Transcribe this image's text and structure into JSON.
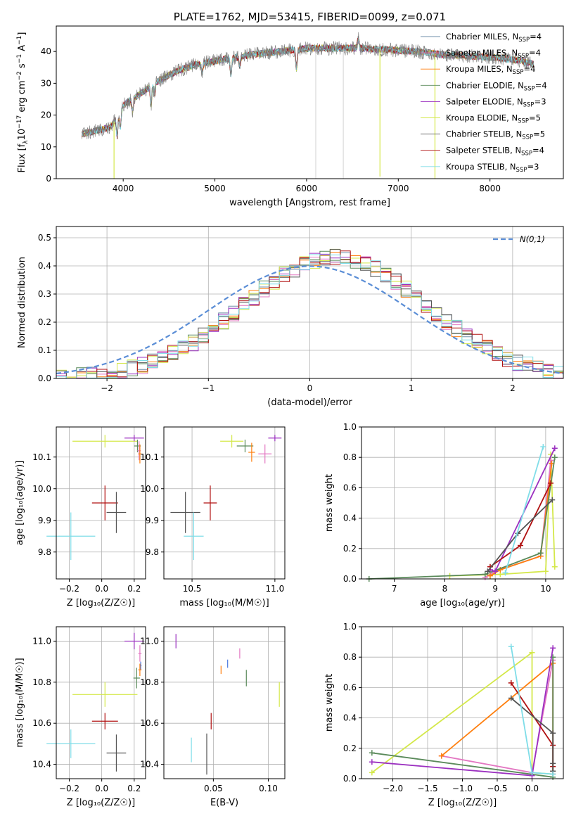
{
  "colors": {
    "chabrier_miles": "#6f8fa8",
    "salpeter_miles": "#e377c2",
    "kroupa_miles": "#ff7f0e",
    "chabrier_elodie": "#5a8a5a",
    "salpeter_elodie": "#9b30c0",
    "kroupa_elodie": "#d4e84a",
    "chabrier_stelib": "#555555",
    "salpeter_stelib": "#b01010",
    "kroupa_stelib": "#7fdde8",
    "normal_curve": "#5b8ed6",
    "grey_spectrum": "#7f7f7f",
    "blue_marker": "#4a78e0"
  },
  "chart_data": [
    {
      "id": "spectrum",
      "type": "line",
      "title": "PLATE=1762, MJD=53415, FIBERID=0099, z=0.071",
      "xlabel": "wavelength [Angstrom, rest frame]",
      "ylabel": "Flux [f$_\\lambda$10$^{-17}$ erg cm$^{-2}$ s$^{-1}$ A$^{-1}$]",
      "ylabel_parts": [
        "Flux [f",
        "λ",
        "10",
        "−17",
        " erg cm",
        "−2",
        " s",
        "−1",
        " A",
        "−1",
        "]"
      ],
      "xlim": [
        3270,
        8800
      ],
      "ylim": [
        0,
        48
      ],
      "xticks": [
        4000,
        5000,
        6000,
        7000,
        8000
      ],
      "yticks": [
        0,
        10,
        20,
        30,
        40
      ],
      "grid": false,
      "legend_position": "top-right",
      "legend": [
        {
          "key": "chabrier_miles",
          "name": "Chabrier MILES, N",
          "sub": "SSP",
          "suffix": "=4"
        },
        {
          "key": "salpeter_miles",
          "name": "Salpeter MILES, N",
          "sub": "SSP",
          "suffix": "=4"
        },
        {
          "key": "kroupa_miles",
          "name": "Kroupa MILES, N",
          "sub": "SSP",
          "suffix": "=4"
        },
        {
          "key": "chabrier_elodie",
          "name": "Chabrier ELODIE, N",
          "sub": "SSP",
          "suffix": "=4"
        },
        {
          "key": "salpeter_elodie",
          "name": "Salpeter ELODIE, N",
          "sub": "SSP",
          "suffix": "=3"
        },
        {
          "key": "kroupa_elodie",
          "name": "Kroupa ELODIE, N",
          "sub": "SSP",
          "suffix": "=5"
        },
        {
          "key": "chabrier_stelib",
          "name": "Chabrier STELIB, N",
          "sub": "SSP",
          "suffix": "=5"
        },
        {
          "key": "salpeter_stelib",
          "name": "Salpeter STELIB, N",
          "sub": "SSP",
          "suffix": "=4"
        },
        {
          "key": "kroupa_stelib",
          "name": "Kroupa STELIB, N",
          "sub": "SSP",
          "suffix": "=3"
        }
      ],
      "continuum": [
        [
          3550,
          14
        ],
        [
          3700,
          15
        ],
        [
          3850,
          16
        ],
        [
          3950,
          20
        ],
        [
          4000,
          23
        ],
        [
          4200,
          27
        ],
        [
          4400,
          31
        ],
        [
          4600,
          34
        ],
        [
          4800,
          36
        ],
        [
          5000,
          37
        ],
        [
          5200,
          38
        ],
        [
          5400,
          39
        ],
        [
          5700,
          40
        ],
        [
          6000,
          41
        ],
        [
          6300,
          41
        ],
        [
          6600,
          41
        ],
        [
          6900,
          40.5
        ],
        [
          7200,
          40
        ],
        [
          7500,
          39
        ],
        [
          7800,
          38.5
        ],
        [
          8100,
          38
        ],
        [
          8350,
          37
        ],
        [
          8480,
          36
        ]
      ],
      "absorption_lines": [
        [
          3934,
          -6
        ],
        [
          3969,
          -5
        ],
        [
          4102,
          -4
        ],
        [
          4304,
          -6
        ],
        [
          4341,
          -3
        ],
        [
          4861,
          -3
        ],
        [
          5175,
          -5
        ],
        [
          5270,
          -3
        ],
        [
          5890,
          -6
        ],
        [
          6563,
          3
        ],
        [
          8498,
          -4
        ],
        [
          8542,
          -6
        ],
        [
          8662,
          -5
        ]
      ],
      "spikes": [
        [
          3900,
          -25
        ],
        [
          6800,
          -40
        ],
        [
          7400,
          -40
        ]
      ]
    },
    {
      "id": "residuals",
      "type": "histogram",
      "xlabel": "(data-model)/error",
      "ylabel": "Normed distribution",
      "xlim": [
        -2.5,
        2.5
      ],
      "ylim": [
        0,
        0.54
      ],
      "xticks": [
        -2,
        -1,
        0,
        1,
        2
      ],
      "yticks": [
        0.0,
        0.1,
        0.2,
        0.3,
        0.4,
        0.5
      ],
      "grid": true,
      "legend_position": "top-right",
      "legend_label": "N(0,1)",
      "bin_width": 0.1,
      "center_shift": 0.25,
      "sigma": 1.0,
      "amplitude": 0.43
    },
    {
      "id": "age_vs_Z",
      "type": "errorbar",
      "xlabel": "Z [log₁₀(Z/Z☉)]",
      "ylabel": "age  [log₁₀(age/yr)]",
      "xlim": [
        -0.28,
        0.27
      ],
      "ylim": [
        9.715,
        10.195
      ],
      "xticks": [
        -0.2,
        0.0,
        0.2
      ],
      "yticks": [
        9.8,
        9.9,
        10.0,
        10.1
      ],
      "grid": true,
      "points": [
        {
          "key": "kroupa_elodie",
          "x": 0.02,
          "xerr": 0.2,
          "y": 10.15,
          "yerr": 0.02
        },
        {
          "key": "salpeter_elodie",
          "x": 0.2,
          "xerr": 0.06,
          "y": 10.16,
          "yerr": 0.01
        },
        {
          "key": "chabrier_elodie",
          "x": 0.22,
          "xerr": 0.02,
          "y": 10.135,
          "yerr": 0.02
        },
        {
          "key": "salpeter_miles",
          "x": 0.23,
          "xerr": 0.01,
          "y": 10.12,
          "yerr": 0.03
        },
        {
          "key": "kroupa_miles",
          "x": 0.235,
          "xerr": 0.01,
          "y": 10.11,
          "yerr": 0.03
        },
        {
          "key": "salpeter_stelib",
          "x": 0.02,
          "xerr": 0.08,
          "y": 9.955,
          "yerr": 0.055
        },
        {
          "key": "chabrier_stelib",
          "x": 0.09,
          "xerr": 0.06,
          "y": 9.925,
          "yerr": 0.065
        },
        {
          "key": "kroupa_stelib",
          "x": -0.19,
          "xerr": 0.15,
          "y": 9.85,
          "yerr": 0.075
        }
      ]
    },
    {
      "id": "age_vs_mass",
      "type": "errorbar",
      "xlabel": "mass [log₁₀(M/M☉)]",
      "ylabel": "",
      "xlim": [
        10.33,
        11.06
      ],
      "ylim": [
        9.715,
        10.195
      ],
      "xticks": [
        10.5,
        11.0
      ],
      "xtick_labels": [
        "10.5",
        "11.0"
      ],
      "yticks": [
        9.8,
        9.9,
        10.0,
        10.1
      ],
      "grid": true,
      "points": [
        {
          "key": "kroupa_elodie",
          "x": 10.74,
          "xerr": 0.07,
          "y": 10.15,
          "yerr": 0.02
        },
        {
          "key": "salpeter_elodie",
          "x": 11.0,
          "xerr": 0.04,
          "y": 10.16,
          "yerr": 0.01
        },
        {
          "key": "chabrier_elodie",
          "x": 10.82,
          "xerr": 0.05,
          "y": 10.135,
          "yerr": 0.02
        },
        {
          "key": "salpeter_miles",
          "x": 10.94,
          "xerr": 0.04,
          "y": 10.11,
          "yerr": 0.03
        },
        {
          "key": "kroupa_miles",
          "x": 10.86,
          "xerr": 0.02,
          "y": 10.115,
          "yerr": 0.03
        },
        {
          "key": "salpeter_stelib",
          "x": 10.61,
          "xerr": 0.04,
          "y": 9.955,
          "yerr": 0.055
        },
        {
          "key": "chabrier_stelib",
          "x": 10.46,
          "xerr": 0.09,
          "y": 9.925,
          "yerr": 0.065
        },
        {
          "key": "kroupa_stelib",
          "x": 10.51,
          "xerr": 0.06,
          "y": 9.85,
          "yerr": 0.075
        }
      ]
    },
    {
      "id": "weight_vs_age",
      "type": "line",
      "xlabel": "age  [log₁₀(age/yr)]",
      "ylabel": "mass weight",
      "xlim": [
        6.35,
        10.35
      ],
      "ylim": [
        0,
        1.0
      ],
      "xticks": [
        7,
        8,
        9,
        10
      ],
      "yticks": [
        0.0,
        0.2,
        0.4,
        0.6,
        0.8,
        1.0
      ],
      "grid": true,
      "series": [
        {
          "key": "kroupa_elodie",
          "x": [
            8.1,
            9.1,
            10.0,
            10.1,
            10.18
          ],
          "y": [
            0.02,
            0.03,
            0.05,
            0.82,
            0.08
          ]
        },
        {
          "key": "salpeter_miles",
          "x": [
            8.8,
            9.0,
            9.9,
            10.1
          ],
          "y": [
            0.01,
            0.05,
            0.15,
            0.78
          ]
        },
        {
          "key": "kroupa_miles",
          "x": [
            8.9,
            9.1,
            9.9,
            10.12
          ],
          "y": [
            0.02,
            0.06,
            0.15,
            0.76
          ]
        },
        {
          "key": "chabrier_elodie",
          "x": [
            6.5,
            8.8,
            9.9,
            10.18
          ],
          "y": [
            0.0,
            0.03,
            0.17,
            0.8
          ]
        },
        {
          "key": "salpeter_elodie",
          "x": [
            8.9,
            9.0,
            10.18
          ],
          "y": [
            0.06,
            0.05,
            0.86
          ]
        },
        {
          "key": "salpeter_stelib",
          "x": [
            8.9,
            9.5,
            10.1
          ],
          "y": [
            0.08,
            0.22,
            0.63
          ]
        },
        {
          "key": "chabrier_stelib",
          "x": [
            8.85,
            9.45,
            10.13
          ],
          "y": [
            0.05,
            0.3,
            0.52
          ]
        },
        {
          "key": "kroupa_stelib",
          "x": [
            9.2,
            9.95
          ],
          "y": [
            0.04,
            0.87
          ]
        }
      ]
    },
    {
      "id": "mass_vs_Z",
      "type": "errorbar",
      "xlabel": "Z [log₁₀(Z/Z☉)]",
      "ylabel": "mass [log₁₀(M/M☉)]",
      "xlim": [
        -0.28,
        0.27
      ],
      "ylim": [
        10.33,
        11.07
      ],
      "xticks": [
        -0.2,
        0.0,
        0.2
      ],
      "yticks": [
        10.4,
        10.6,
        10.8,
        11.0
      ],
      "grid": true,
      "points": [
        {
          "key": "salpeter_elodie",
          "x": 0.2,
          "xerr": 0.06,
          "y": 11.0,
          "yerr": 0.04
        },
        {
          "key": "salpeter_miles",
          "x": 0.235,
          "xerr": 0.01,
          "y": 10.94,
          "yerr": 0.04
        },
        {
          "key": "blue_marker",
          "x": 0.24,
          "xerr": 0.005,
          "y": 10.88,
          "yerr": 0.02
        },
        {
          "key": "kroupa_miles",
          "x": 0.235,
          "xerr": 0.01,
          "y": 10.86,
          "yerr": 0.03
        },
        {
          "key": "chabrier_elodie",
          "x": 0.215,
          "xerr": 0.02,
          "y": 10.82,
          "yerr": 0.05
        },
        {
          "key": "kroupa_elodie",
          "x": 0.02,
          "xerr": 0.2,
          "y": 10.74,
          "yerr": 0.06
        },
        {
          "key": "salpeter_stelib",
          "x": 0.02,
          "xerr": 0.08,
          "y": 10.61,
          "yerr": 0.04
        },
        {
          "key": "kroupa_stelib",
          "x": -0.19,
          "xerr": 0.15,
          "y": 10.5,
          "yerr": 0.07
        },
        {
          "key": "chabrier_stelib",
          "x": 0.09,
          "xerr": 0.06,
          "y": 10.455,
          "yerr": 0.09
        }
      ]
    },
    {
      "id": "mass_vs_ebv",
      "type": "errorbar",
      "xlabel": "E(B-V)",
      "ylabel": "",
      "xlim": [
        0.005,
        0.115
      ],
      "ylim": [
        10.33,
        11.07
      ],
      "xticks": [
        0.05,
        0.1
      ],
      "xtick_labels": [
        "0.05",
        "0.10"
      ],
      "yticks": [
        10.4,
        10.6,
        10.8,
        11.0
      ],
      "grid": true,
      "points": [
        {
          "key": "salpeter_elodie",
          "x": 0.016,
          "xerr": 0,
          "y": 11.0,
          "yerr": 0.035
        },
        {
          "key": "salpeter_miles",
          "x": 0.074,
          "xerr": 0,
          "y": 10.94,
          "yerr": 0.025
        },
        {
          "key": "blue_marker",
          "x": 0.063,
          "xerr": 0,
          "y": 10.89,
          "yerr": 0.02
        },
        {
          "key": "kroupa_miles",
          "x": 0.057,
          "xerr": 0,
          "y": 10.86,
          "yerr": 0.02
        },
        {
          "key": "chabrier_elodie",
          "x": 0.08,
          "xerr": 0,
          "y": 10.82,
          "yerr": 0.04
        },
        {
          "key": "kroupa_elodie",
          "x": 0.11,
          "xerr": 0,
          "y": 10.74,
          "yerr": 0.06
        },
        {
          "key": "salpeter_stelib",
          "x": 0.048,
          "xerr": 0,
          "y": 10.61,
          "yerr": 0.04
        },
        {
          "key": "kroupa_stelib",
          "x": 0.03,
          "xerr": 0,
          "y": 10.47,
          "yerr": 0.06
        },
        {
          "key": "chabrier_stelib",
          "x": 0.044,
          "xerr": 0,
          "y": 10.45,
          "yerr": 0.1
        }
      ]
    },
    {
      "id": "weight_vs_Z",
      "type": "line",
      "xlabel": "Z [log₁₀(Z/Z☉)]",
      "ylabel": "mass weight",
      "xlim": [
        -2.45,
        0.45
      ],
      "ylim": [
        0,
        1.0
      ],
      "xticks": [
        -2.0,
        -1.5,
        -1.0,
        -0.5,
        0.0
      ],
      "yticks": [
        0.0,
        0.2,
        0.4,
        0.6,
        0.8,
        1.0
      ],
      "grid": true,
      "series": [
        {
          "key": "kroupa_elodie",
          "x": [
            -2.3,
            0.0,
            0.0,
            0.3
          ],
          "y": [
            0.04,
            0.83,
            0.04,
            0.03
          ]
        },
        {
          "key": "salpeter_miles",
          "x": [
            -1.3,
            0.0,
            0.3,
            0.3
          ],
          "y": [
            0.15,
            0.04,
            0.78,
            0.03
          ]
        },
        {
          "key": "kroupa_miles",
          "x": [
            -1.3,
            0.3,
            0.3
          ],
          "y": [
            0.15,
            0.76,
            0.05
          ]
        },
        {
          "key": "chabrier_elodie",
          "x": [
            -2.3,
            0.3,
            0.3
          ],
          "y": [
            0.17,
            0.01,
            0.8
          ]
        },
        {
          "key": "salpeter_elodie",
          "x": [
            -2.3,
            0.0,
            0.3
          ],
          "y": [
            0.11,
            0.02,
            0.86
          ]
        },
        {
          "key": "salpeter_stelib",
          "x": [
            -0.3,
            0.3,
            0.3
          ],
          "y": [
            0.63,
            0.22,
            0.08
          ]
        },
        {
          "key": "chabrier_stelib",
          "x": [
            -0.3,
            0.3,
            0.3,
            0.3
          ],
          "y": [
            0.53,
            0.3,
            0.05,
            0.1
          ]
        },
        {
          "key": "kroupa_stelib",
          "x": [
            -0.3,
            0.0,
            0.3
          ],
          "y": [
            0.87,
            0.04,
            0.03
          ]
        }
      ]
    }
  ]
}
